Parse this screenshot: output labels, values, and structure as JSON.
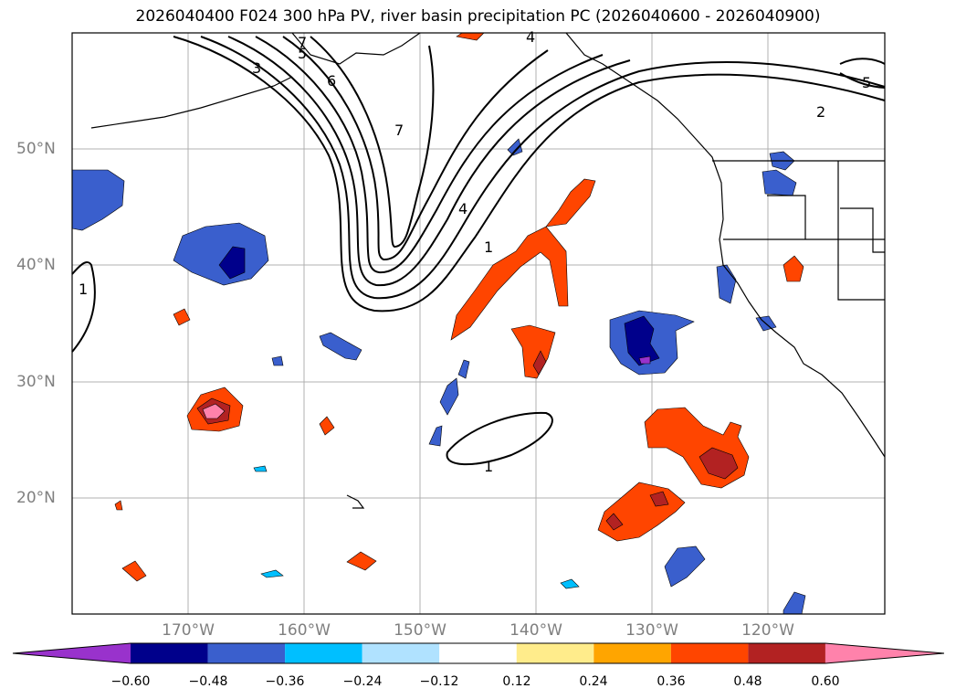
{
  "title": "2026040400 F024 300 hPa PV, river basin precipitation PC (2026040600 - 2026040900)",
  "latitude_labels": [
    "50°N",
    "40°N",
    "30°N",
    "20°N"
  ],
  "longitude_labels": [
    "170°W",
    "160°W",
    "150°W",
    "140°W",
    "130°W",
    "120°W"
  ],
  "contour_labels": [
    "3",
    "5",
    "6",
    "7",
    "7",
    "4",
    "1",
    "1",
    "1",
    "2",
    "5",
    "4"
  ],
  "colorbar": {
    "tick_labels": [
      "−0.60",
      "−0.48",
      "−0.36",
      "−0.24",
      "−0.12",
      "0.12",
      "0.24",
      "0.36",
      "0.48",
      "0.60"
    ],
    "colors": [
      "#9932cc",
      "#00008b",
      "#3a5fcd",
      "#00bfff",
      "#b0e2ff",
      "#ffffff",
      "#ffec8b",
      "#ffa500",
      "#ff4500",
      "#b22222",
      "#ff82ab"
    ]
  }
}
